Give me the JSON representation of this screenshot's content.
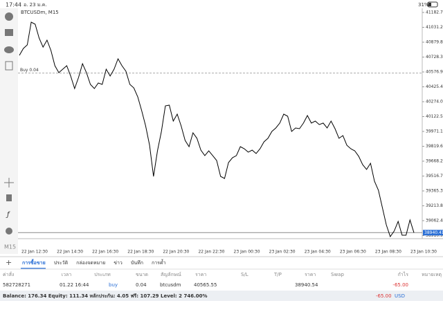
{
  "status_bar": {
    "time": "17:44",
    "date": "อ. 23 ม.ค.",
    "battery": "31%"
  },
  "sidebar": {
    "timeframe": "M15"
  },
  "chart_data": {
    "type": "line",
    "title": "BTCUSDm, M15",
    "series": [
      {
        "name": "BTCUSDm",
        "color": "#000000",
        "values": [
          40746,
          40816,
          40852,
          41084,
          41063,
          40922,
          40830,
          40901,
          40795,
          40640,
          40570,
          40605,
          40640,
          40535,
          40408,
          40521,
          40661,
          40570,
          40450,
          40408,
          40464,
          40450,
          40605,
          40535,
          40605,
          40711,
          40640,
          40584,
          40450,
          40415,
          40323,
          40182,
          40027,
          39830,
          39513,
          39774,
          39971,
          40232,
          40239,
          40077,
          40147,
          40027,
          39880,
          39816,
          39957,
          39901,
          39781,
          39725,
          39774,
          39725,
          39675,
          39513,
          39492,
          39654,
          39703,
          39725,
          39816,
          39795,
          39760,
          39781,
          39746,
          39795,
          39865,
          39901,
          39971,
          40006,
          40056,
          40147,
          40126,
          39971,
          40006,
          39999,
          40056,
          40133,
          40056,
          40077,
          40041,
          40056,
          40006,
          40077,
          39999,
          39901,
          39929,
          39830,
          39795,
          39774,
          39718,
          39633,
          39584,
          39647,
          39464,
          39372,
          39196,
          39020,
          38900,
          38957,
          39055,
          38914,
          38914,
          39069,
          38940
        ]
      }
    ],
    "xtick_labels": [
      "22 Jan 12:30",
      "22 Jan 14:30",
      "22 Jan 16:30",
      "22 Jan 18:30",
      "22 Jan 20:30",
      "22 Jan 22:30",
      "23 Jan 00:30",
      "23 Jan 02:30",
      "23 Jan 04:30",
      "23 Jan 06:30",
      "23 Jan 08:30",
      "23 Jan 10:30"
    ],
    "ylim": [
      38879,
      41225
    ],
    "yticks": [
      {
        "value": 41182.7,
        "label": "41182.70"
      },
      41031.25,
      {
        "value": 40879.8,
        "label": "40879.80"
      },
      40728.35,
      {
        "value": 40576.9,
        "label": "40576.90"
      },
      40425.45,
      {
        "value": 40274,
        "label": "40274.00"
      },
      40122.55,
      {
        "value": 39971.1,
        "label": "39971.10"
      },
      39819.65,
      {
        "value": 39668.2,
        "label": "39668.20"
      },
      39516.75,
      {
        "value": 39365.3,
        "label": "39365.30"
      },
      39213.85,
      {
        "value": 39062.4,
        "label": "39062.40"
      },
      38910.95
    ],
    "order_line": {
      "label": "Buy 0.04",
      "value": 40565.55
    },
    "current_price": {
      "value": 38940.41,
      "label": "38940.41"
    }
  },
  "tabs": [
    "การซื้อขาย",
    "ประวัติ",
    "กล่องจดหมาย",
    "ข่าว",
    "บันทึก",
    "การค้ำ"
  ],
  "table": {
    "headers": [
      "ค่าสั่ง",
      "เวลา",
      "ประเภท",
      "ขนาด",
      "สัญลักษณ์",
      "ราคา",
      "S/L",
      "T/P",
      "ราคา",
      "Swap",
      "กำไร",
      "หมายเหตุ"
    ],
    "row": {
      "order": "582728271",
      "time": "01.22 16:44",
      "type": "buy",
      "size": "0.04",
      "symbol": "btcusdm",
      "open_price": "40565.55",
      "price": "38940.54",
      "profit": "-65.00"
    }
  },
  "balance": {
    "text": "Balance: 176.34 Equity: 111.34 หลักประกัน: 4.05 ฟรี: 107.29 Level: 2 746.00%",
    "profit": "-65.00",
    "currency": "USD"
  }
}
